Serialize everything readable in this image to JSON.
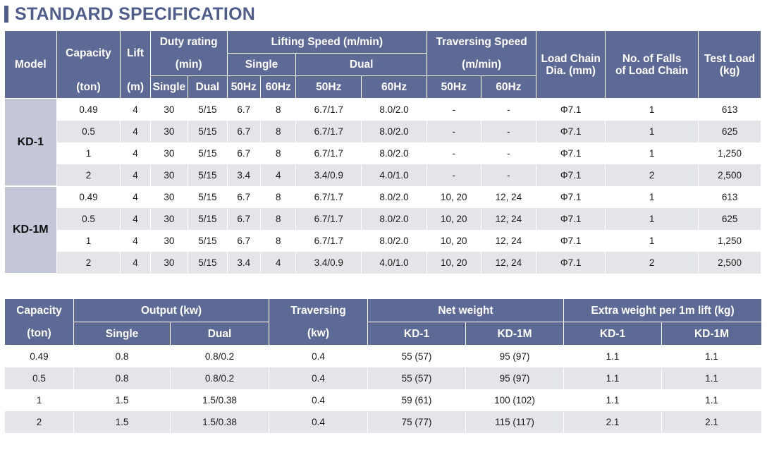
{
  "title": "STANDARD SPECIFICATION",
  "table1": {
    "headers": {
      "model": "Model",
      "capacity": "Capacity",
      "capacity_unit": "(ton)",
      "lift": "Lift",
      "lift_unit": "(m)",
      "duty_rating": "Duty rating",
      "duty_unit": "(min)",
      "duty_single": "Single",
      "duty_dual": "Dual",
      "lifting_speed": "Lifting Speed (m/min)",
      "lift_single": "Single",
      "lift_dual": "Dual",
      "hz50": "50Hz",
      "hz60": "60Hz",
      "traversing_speed": "Traversing Speed",
      "trav_unit": "(m/min)",
      "chain_dia_1": "Load Chain",
      "chain_dia_2": "Dia. (mm)",
      "falls_1": "No. of Falls",
      "falls_2": "of Load Chain",
      "test_load_1": "Test Load",
      "test_load_2": "(kg)"
    },
    "groups": [
      {
        "model": "KD-1",
        "rows": [
          [
            "0.49",
            "4",
            "30",
            "5/15",
            "6.7",
            "8",
            "6.7/1.7",
            "8.0/2.0",
            "-",
            "-",
            "Φ7.1",
            "1",
            "613"
          ],
          [
            "0.5",
            "4",
            "30",
            "5/15",
            "6.7",
            "8",
            "6.7/1.7",
            "8.0/2.0",
            "-",
            "-",
            "Φ7.1",
            "1",
            "625"
          ],
          [
            "1",
            "4",
            "30",
            "5/15",
            "6.7",
            "8",
            "6.7/1.7",
            "8.0/2.0",
            "-",
            "-",
            "Φ7.1",
            "1",
            "1,250"
          ],
          [
            "2",
            "4",
            "30",
            "5/15",
            "3.4",
            "4",
            "3.4/0.9",
            "4.0/1.0",
            "-",
            "-",
            "Φ7.1",
            "2",
            "2,500"
          ]
        ]
      },
      {
        "model": "KD-1M",
        "rows": [
          [
            "0.49",
            "4",
            "30",
            "5/15",
            "6.7",
            "8",
            "6.7/1.7",
            "8.0/2.0",
            "10, 20",
            "12, 24",
            "Φ7.1",
            "1",
            "613"
          ],
          [
            "0.5",
            "4",
            "30",
            "5/15",
            "6.7",
            "8",
            "6.7/1.7",
            "8.0/2.0",
            "10, 20",
            "12, 24",
            "Φ7.1",
            "1",
            "625"
          ],
          [
            "1",
            "4",
            "30",
            "5/15",
            "6.7",
            "8",
            "6.7/1.7",
            "8.0/2.0",
            "10, 20",
            "12, 24",
            "Φ7.1",
            "1",
            "1,250"
          ],
          [
            "2",
            "4",
            "30",
            "5/15",
            "3.4",
            "4",
            "3.4/0.9",
            "4.0/1.0",
            "10, 20",
            "12, 24",
            "Φ7.1",
            "2",
            "2,500"
          ]
        ]
      }
    ]
  },
  "table2": {
    "headers": {
      "capacity": "Capacity",
      "capacity_unit": "(ton)",
      "output": "Output (kw)",
      "out_single": "Single",
      "out_dual": "Dual",
      "traversing": "Traversing",
      "trav_unit": "(kw)",
      "net_weight": "Net weight",
      "nw_kd1": "KD-1",
      "nw_kd1m": "KD-1M",
      "extra_weight": "Extra weight per 1m lift (kg)",
      "ew_kd1": "KD-1",
      "ew_kd1m": "KD-1M"
    },
    "rows": [
      [
        "0.49",
        "0.8",
        "0.8/0.2",
        "0.4",
        "55 (57)",
        "95 (97)",
        "1.1",
        "1.1"
      ],
      [
        "0.5",
        "0.8",
        "0.8/0.2",
        "0.4",
        "55 (57)",
        "95 (97)",
        "1.1",
        "1.1"
      ],
      [
        "1",
        "1.5",
        "1.5/0.38",
        "0.4",
        "59 (61)",
        "100 (102)",
        "1.1",
        "1.1"
      ],
      [
        "2",
        "1.5",
        "1.5/0.38",
        "0.4",
        "75 (77)",
        "115 (117)",
        "2.1",
        "2.1"
      ]
    ]
  }
}
